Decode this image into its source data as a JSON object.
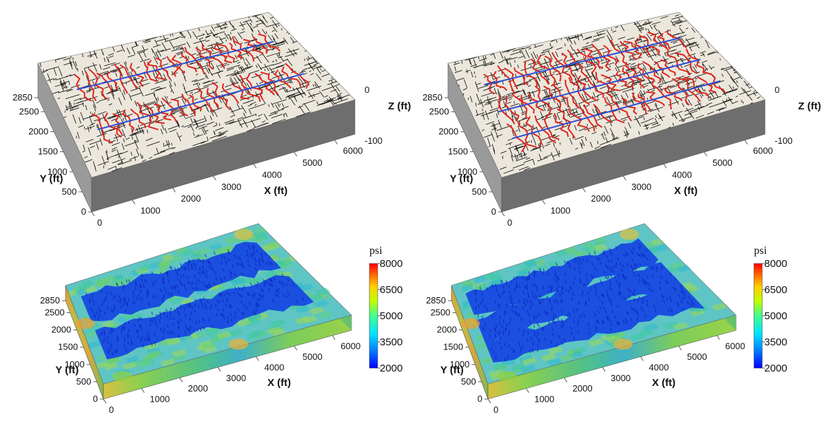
{
  "panels": [
    {
      "id": "tl",
      "kind": "fracture",
      "wells": 2,
      "axes": {
        "y_ticks": [
          "0",
          "500",
          "1000",
          "1500",
          "2000",
          "2500",
          "2850"
        ],
        "y_label": "Y (ft)",
        "x_ticks": [
          "0",
          "1000",
          "2000",
          "3000",
          "4000",
          "5000",
          "6000"
        ],
        "x_label": "X (ft)",
        "z_ticks": [
          "0",
          "-100"
        ],
        "z_label": "Z (ft)"
      }
    },
    {
      "id": "tr",
      "kind": "fracture",
      "wells": 3,
      "axes": {
        "y_ticks": [
          "0",
          "500",
          "1000",
          "1500",
          "2000",
          "2500",
          "2850"
        ],
        "y_label": "Y (ft)",
        "x_ticks": [
          "0",
          "1000",
          "2000",
          "3000",
          "4000",
          "5000",
          "6000"
        ],
        "x_label": "X (ft)",
        "z_ticks": [
          "0",
          "-100"
        ],
        "z_label": "Z (ft)"
      }
    },
    {
      "id": "bl",
      "kind": "pressure",
      "wells": 2,
      "axes": {
        "y_ticks": [
          "0",
          "500",
          "1000",
          "1500",
          "2000",
          "2500",
          "2850"
        ],
        "y_label": "Y (ft)",
        "x_ticks": [
          "0",
          "1000",
          "2000",
          "3000",
          "4000",
          "5000",
          "6000"
        ],
        "x_label": "X (ft)"
      },
      "colorbar": {
        "unit": "psi",
        "ticks": [
          "8000",
          "6500",
          "5000",
          "3500",
          "2000"
        ]
      }
    },
    {
      "id": "br",
      "kind": "pressure",
      "wells": 3,
      "axes": {
        "y_ticks": [
          "0",
          "500",
          "1000",
          "1500",
          "2000",
          "2500",
          "2850"
        ],
        "y_label": "Y (ft)",
        "x_ticks": [
          "0",
          "1000",
          "2000",
          "3000",
          "4000",
          "5000",
          "6000"
        ],
        "x_label": "X (ft)"
      },
      "colorbar": {
        "unit": "psi",
        "ticks": [
          "8000",
          "6500",
          "5000",
          "3500",
          "2000"
        ]
      }
    }
  ],
  "colors": {
    "fracture_natural": "#1a1a1a",
    "fracture_hydraulic": "#e0241b",
    "well": "#2a4fd6",
    "slab_top": "#ece7dc",
    "slab_front": "#9a9a9a",
    "slab_right": "#6e6e6e",
    "colormap": [
      "#0000ff",
      "#0080ff",
      "#00e5ff",
      "#40ff90",
      "#c0ff00",
      "#ffd000",
      "#ff6000",
      "#ff0000"
    ]
  }
}
